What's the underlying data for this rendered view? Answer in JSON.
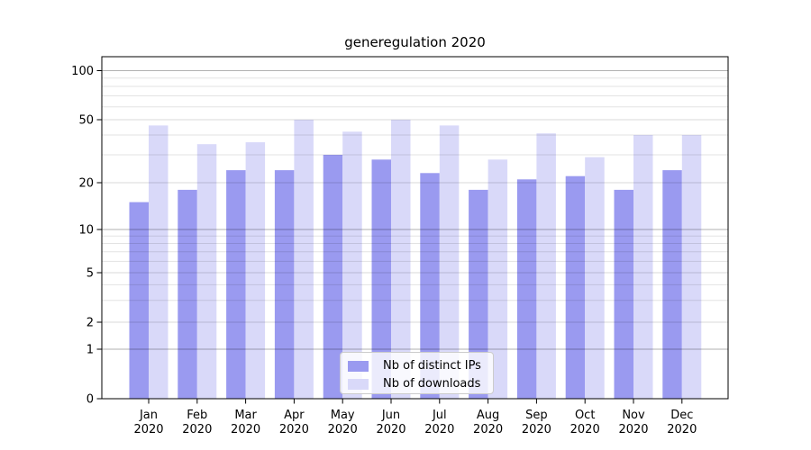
{
  "title": "generegulation 2020",
  "chart_data": {
    "type": "bar",
    "title": "generegulation 2020",
    "categories": [
      "Jan",
      "Feb",
      "Mar",
      "Apr",
      "May",
      "Jun",
      "Jul",
      "Aug",
      "Sep",
      "Oct",
      "Nov",
      "Dec"
    ],
    "year_label": "2020",
    "series": [
      {
        "name": "Nb of distinct IPs",
        "color": "#9a9af0",
        "values": [
          15,
          18,
          24,
          24,
          30,
          28,
          23,
          18,
          21,
          22,
          18,
          24
        ]
      },
      {
        "name": "Nb of downloads",
        "color": "#d9d9f9",
        "values": [
          46,
          35,
          36,
          50,
          42,
          50,
          46,
          28,
          41,
          29,
          40,
          40
        ]
      }
    ],
    "xlabel": "",
    "ylabel": "",
    "yscale": "symlog",
    "ylim": [
      0,
      122
    ],
    "yticks_labeled": [
      0,
      1,
      2,
      5,
      10,
      20,
      50,
      100
    ],
    "yticks_decade": [
      1,
      10,
      100
    ],
    "yticks_mid": [
      2,
      5,
      20,
      50
    ],
    "yticks_minor": [
      3,
      4,
      6,
      7,
      8,
      9,
      30,
      40,
      60,
      70,
      80,
      90
    ],
    "grid": "on",
    "legend_position": "lower center"
  },
  "legend": {
    "items": [
      {
        "label": "Nb of distinct IPs",
        "color": "#9a9af0"
      },
      {
        "label": "Nb of downloads",
        "color": "#d9d9f9"
      }
    ]
  },
  "colors": {
    "bar_distinct_ips": "#9a9af0",
    "bar_downloads": "#d9d9f9",
    "spine": "#000000",
    "tick_text": "#000000",
    "legend_border": "#cccccc"
  }
}
